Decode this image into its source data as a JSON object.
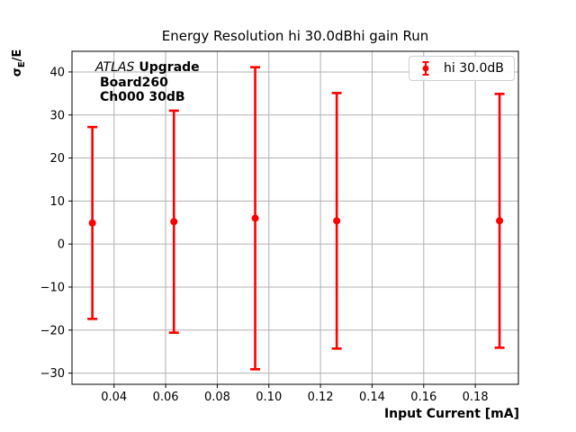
{
  "chart_data": {
    "type": "scatter",
    "subtype": "errorbar",
    "title": "Energy Resolution hi 30.0dBhi gain Run",
    "xlabel": "Input Current [mA]",
    "ylabel": "σE/E",
    "ylabel_parts": {
      "sigma": "σ",
      "sub": "E",
      "rest": "/E"
    },
    "annotation": {
      "line1_italic": "ATLAS",
      "line1_bold": "Upgrade",
      "line2": "Board260",
      "line3": "Ch000 30dB"
    },
    "legend": {
      "label": "hi 30.0dB",
      "position": "upper right"
    },
    "series": [
      {
        "name": "hi 30.0dB",
        "color": "#ff0000",
        "marker": "circle",
        "x": [
          0.0316,
          0.0632,
          0.0947,
          0.1263,
          0.1894
        ],
        "y": [
          4.9,
          5.2,
          6.0,
          5.4,
          5.4
        ],
        "yerr": [
          22.3,
          25.8,
          35.1,
          29.7,
          29.5
        ]
      }
    ],
    "x_ticks": [
      0.04,
      0.06,
      0.08,
      0.1,
      0.12,
      0.14,
      0.16,
      0.18
    ],
    "y_ticks": [
      40,
      30,
      20,
      10,
      0,
      -10,
      -20,
      -30
    ],
    "xlim": [
      0.0237,
      0.1967
    ],
    "ylim": [
      -32.6,
      44.8
    ],
    "grid": true,
    "colors": {
      "series": "#ff0000",
      "grid": "#b0b0b0",
      "spine": "#000000",
      "text": "#000000",
      "legend_border": "#d0d0d0"
    }
  }
}
